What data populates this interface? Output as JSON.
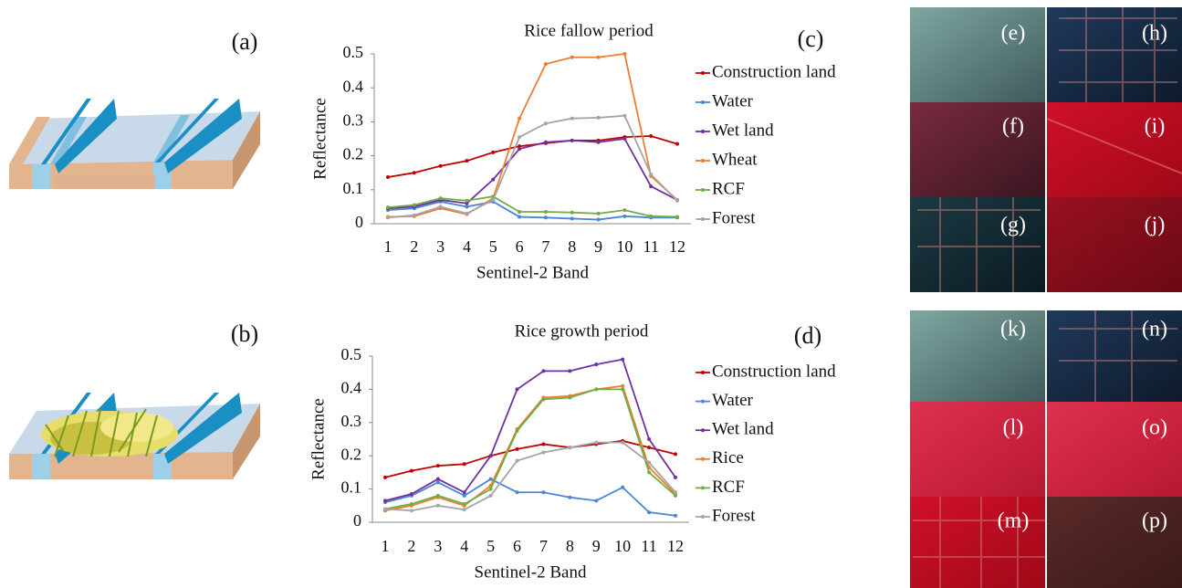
{
  "illustration_labels": [
    "(a)",
    "(b)"
  ],
  "image_labels": [
    "(e)",
    "(f)",
    "(g)",
    "(h)",
    "(i)",
    "(j)",
    "(k)",
    "(l)",
    "(m)",
    "(n)",
    "(o)",
    "(p)"
  ],
  "chart_data": [
    {
      "type": "line",
      "title": "Rice fallow period",
      "panel_label": "(c)",
      "x_label": "Sentinel-2 Band",
      "y_label": "Reflectance",
      "categories": [
        "1",
        "2",
        "3",
        "4",
        "5",
        "6",
        "7",
        "8",
        "9",
        "10",
        "11",
        "12"
      ],
      "ylim": [
        0,
        0.5
      ],
      "yticks": [
        0,
        0.1,
        0.2,
        0.3,
        0.4,
        0.5
      ],
      "legend": "right",
      "series": [
        {
          "name": "Construction land",
          "color": "#c00000",
          "values": [
            0.137,
            0.15,
            0.17,
            0.185,
            0.21,
            0.228,
            0.237,
            0.245,
            0.245,
            0.255,
            0.258,
            0.235
          ]
        },
        {
          "name": "Water",
          "color": "#4a86d8",
          "values": [
            0.04,
            0.045,
            0.065,
            0.05,
            0.065,
            0.02,
            0.018,
            0.015,
            0.012,
            0.022,
            0.018,
            0.018
          ]
        },
        {
          "name": "Wet land",
          "color": "#7030a0",
          "values": [
            0.045,
            0.05,
            0.07,
            0.06,
            0.13,
            0.22,
            0.24,
            0.245,
            0.24,
            0.25,
            0.11,
            0.07
          ]
        },
        {
          "name": "Wheat",
          "color": "#ed7d31",
          "values": [
            0.02,
            0.022,
            0.045,
            0.028,
            0.075,
            0.31,
            0.47,
            0.49,
            0.49,
            0.5,
            0.14,
            0.07
          ]
        },
        {
          "name": "RCF",
          "color": "#70ad47",
          "values": [
            0.048,
            0.055,
            0.075,
            0.068,
            0.08,
            0.035,
            0.035,
            0.033,
            0.03,
            0.04,
            0.022,
            0.02
          ]
        },
        {
          "name": "Forest",
          "color": "#a5a5a5",
          "values": [
            0.018,
            0.025,
            0.05,
            0.03,
            0.07,
            0.255,
            0.295,
            0.31,
            0.312,
            0.318,
            0.145,
            0.068
          ]
        }
      ]
    },
    {
      "type": "line",
      "title": "Rice growth period",
      "panel_label": "(d)",
      "x_label": "Sentinel-2 Band",
      "y_label": "Reflectance",
      "categories": [
        "1",
        "2",
        "3",
        "4",
        "5",
        "6",
        "7",
        "8",
        "9",
        "10",
        "11",
        "12"
      ],
      "ylim": [
        0,
        0.5
      ],
      "yticks": [
        0,
        0.1,
        0.2,
        0.3,
        0.4,
        0.5
      ],
      "legend": "right",
      "series": [
        {
          "name": "Construction land",
          "color": "#c00000",
          "values": [
            0.135,
            0.155,
            0.17,
            0.175,
            0.2,
            0.22,
            0.235,
            0.225,
            0.235,
            0.245,
            0.225,
            0.205
          ]
        },
        {
          "name": "Water",
          "color": "#4a86d8",
          "values": [
            0.06,
            0.08,
            0.12,
            0.08,
            0.13,
            0.09,
            0.09,
            0.075,
            0.065,
            0.105,
            0.03,
            0.02
          ]
        },
        {
          "name": "Wet land",
          "color": "#7030a0",
          "values": [
            0.065,
            0.085,
            0.13,
            0.09,
            0.2,
            0.4,
            0.455,
            0.455,
            0.475,
            0.49,
            0.25,
            0.135
          ]
        },
        {
          "name": "Rice",
          "color": "#ed7d31",
          "values": [
            0.035,
            0.05,
            0.075,
            0.05,
            0.11,
            0.28,
            0.375,
            0.38,
            0.4,
            0.41,
            0.165,
            0.085
          ]
        },
        {
          "name": "RCF",
          "color": "#70ad47",
          "values": [
            0.04,
            0.055,
            0.08,
            0.055,
            0.1,
            0.275,
            0.37,
            0.375,
            0.4,
            0.4,
            0.15,
            0.08
          ]
        },
        {
          "name": "Forest",
          "color": "#a5a5a5",
          "values": [
            0.04,
            0.035,
            0.05,
            0.038,
            0.08,
            0.185,
            0.21,
            0.225,
            0.24,
            0.24,
            0.18,
            0.09
          ]
        }
      ]
    }
  ]
}
